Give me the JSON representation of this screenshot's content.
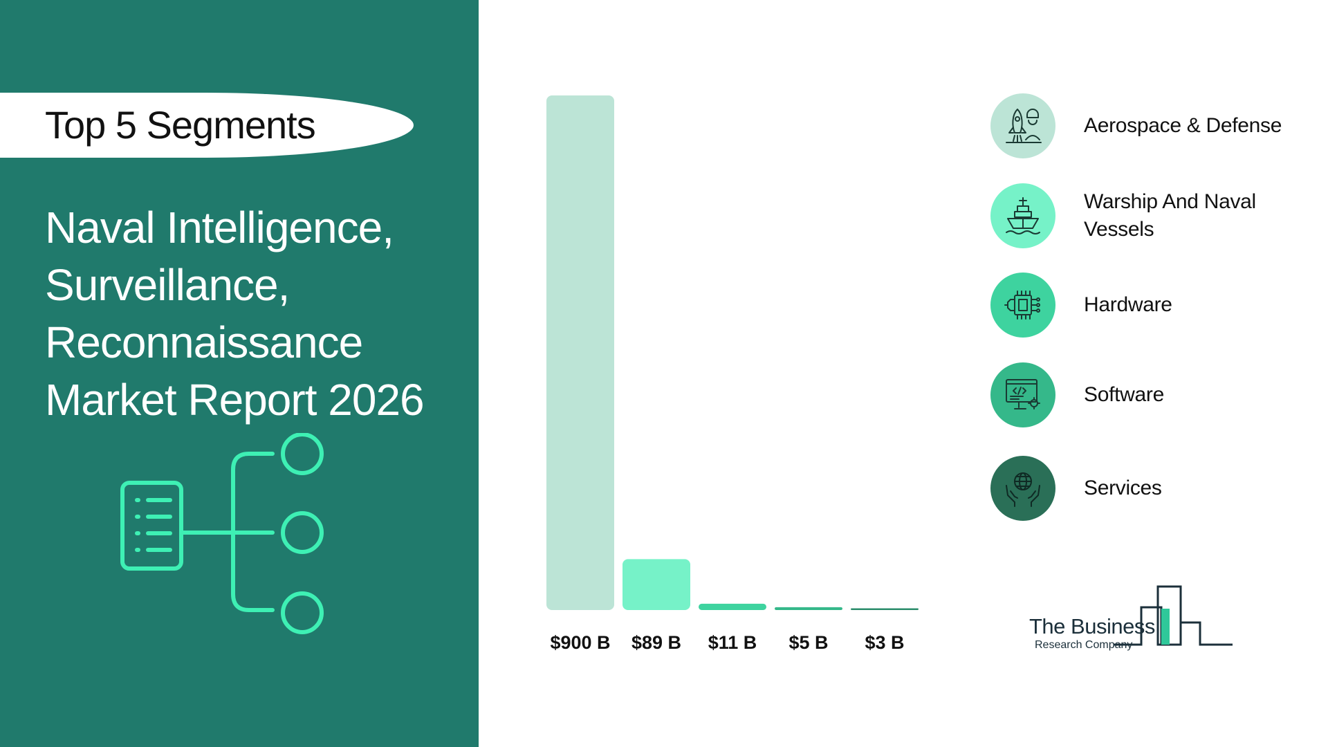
{
  "header": {
    "badge": "Top 5 Segments",
    "report_title": "Naval Intelligence, Surveillance, Reconnaissance Market Report 2026"
  },
  "chart_data": {
    "type": "bar",
    "categories": [
      "Aerospace & Defense",
      "Warship And Naval Vessels",
      "Hardware",
      "Software",
      "Services"
    ],
    "values": [
      900,
      89,
      11,
      5,
      3
    ],
    "data_labels": [
      "$900 B",
      "$89 B",
      "$11 B",
      "$5 B",
      "$3 B"
    ],
    "unit": "$ B",
    "ylim": [
      0,
      900
    ],
    "grid": false,
    "colors": [
      "#bce4d6",
      "#76f2c8",
      "#3ed39f",
      "#35b88a",
      "#2b8c6b"
    ]
  },
  "legend": {
    "items": [
      {
        "label": "Aerospace & Defense",
        "icon": "rocket-launch-icon",
        "color": "#bce4d6"
      },
      {
        "label": "Warship And Naval Vessels",
        "icon": "warship-icon",
        "color": "#76f2c8"
      },
      {
        "label": "Hardware",
        "icon": "microchip-icon",
        "color": "#3ed39f"
      },
      {
        "label": "Software",
        "icon": "code-monitor-icon",
        "color": "#35b88a"
      },
      {
        "label": "Services",
        "icon": "globe-hands-icon",
        "color": "#2a6f57"
      }
    ]
  },
  "brand": {
    "line1": "The Business",
    "line2": "Research Company"
  },
  "colors": {
    "panel": "#207a6c",
    "accent": "#3ef0b4"
  }
}
